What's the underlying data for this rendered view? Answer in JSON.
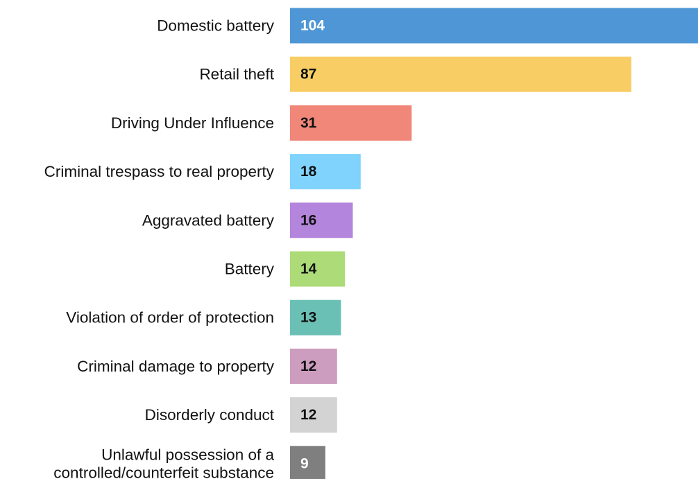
{
  "chart_data": {
    "type": "bar",
    "orientation": "horizontal",
    "title": "",
    "xlabel": "",
    "ylabel": "",
    "grid": false,
    "legend": "none",
    "xlim": [
      0,
      104
    ],
    "categories": [
      "Domestic battery",
      "Retail theft",
      "Driving Under Influence",
      "Criminal trespass to real property",
      "Aggravated battery",
      "Battery",
      "Violation of order of protection",
      "Criminal damage to property",
      "Disorderly conduct",
      "Unlawful possession of a controlled/counterfeit substance"
    ],
    "category_lines": [
      [
        "Domestic battery"
      ],
      [
        "Retail theft"
      ],
      [
        "Driving Under Influence"
      ],
      [
        "Criminal trespass to real property"
      ],
      [
        "Aggravated battery"
      ],
      [
        "Battery"
      ],
      [
        "Violation of order of protection"
      ],
      [
        "Criminal damage to property"
      ],
      [
        "Disorderly conduct"
      ],
      [
        "Unlawful possession of a",
        "controlled/counterfeit substance"
      ]
    ],
    "values": [
      104,
      87,
      31,
      18,
      16,
      14,
      13,
      12,
      12,
      9
    ],
    "value_labels": [
      "104",
      "87",
      "31",
      "18",
      "16",
      "14",
      "13",
      "12",
      "12",
      "9"
    ],
    "colors": [
      "#4e96d5",
      "#f7cd64",
      "#f08779",
      "#7fd3fc",
      "#b385dd",
      "#acdb78",
      "#6bc0b6",
      "#cc9dbe",
      "#d3d3d3",
      "#7f7f7f"
    ],
    "label_colors": [
      "#ffffff",
      "#111111",
      "#111111",
      "#111111",
      "#111111",
      "#111111",
      "#111111",
      "#111111",
      "#111111",
      "#ffffff"
    ]
  }
}
